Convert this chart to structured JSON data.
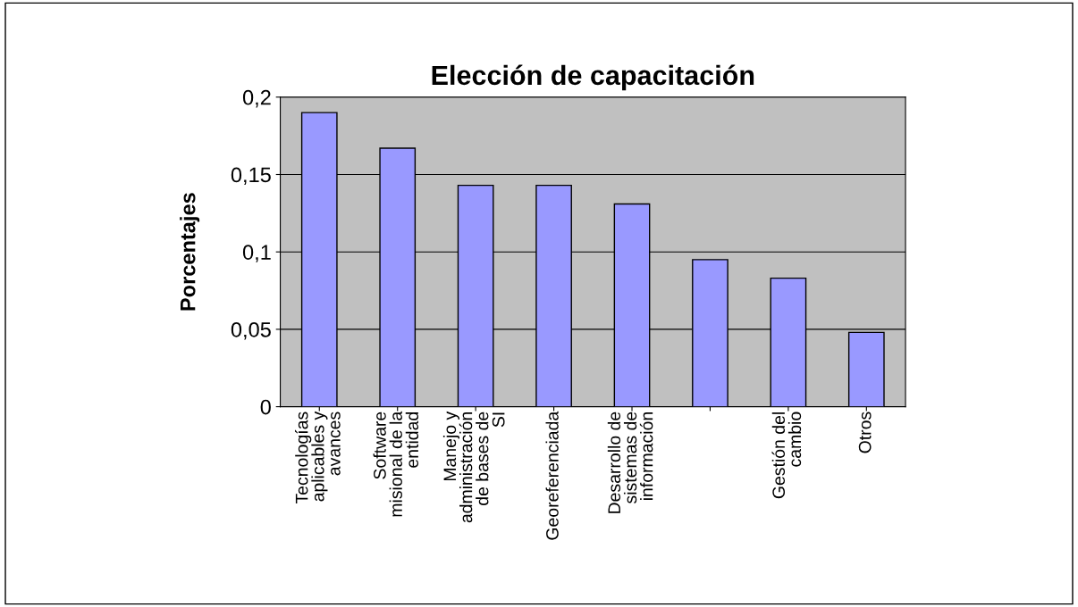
{
  "chart_data": {
    "type": "bar",
    "title": "Elección de capacitación",
    "ylabel": "Porcentajes",
    "categories": [
      "Tecnologías\naplicables y\navances",
      "Software\nmisional de la\nentidad",
      "Manejo y\nadministración\nde bases de\nSI",
      "Georeferenciada",
      "Desarrollo de\nsistemas de\ninformación",
      null,
      "Gestión del\ncambio",
      "Otros"
    ],
    "values": [
      0.19,
      0.167,
      0.143,
      0.143,
      0.131,
      0.095,
      0.083,
      0.048
    ],
    "color": "#9999ff",
    "ylim": [
      0,
      0.2
    ],
    "yticks": [
      {
        "value": 0,
        "label": "0"
      },
      {
        "value": 0.05,
        "label": "0,05"
      },
      {
        "value": 0.1,
        "label": "0,1"
      },
      {
        "value": 0.15,
        "label": "0,15"
      },
      {
        "value": 0.2,
        "label": "0,2"
      }
    ],
    "grid": "y"
  }
}
